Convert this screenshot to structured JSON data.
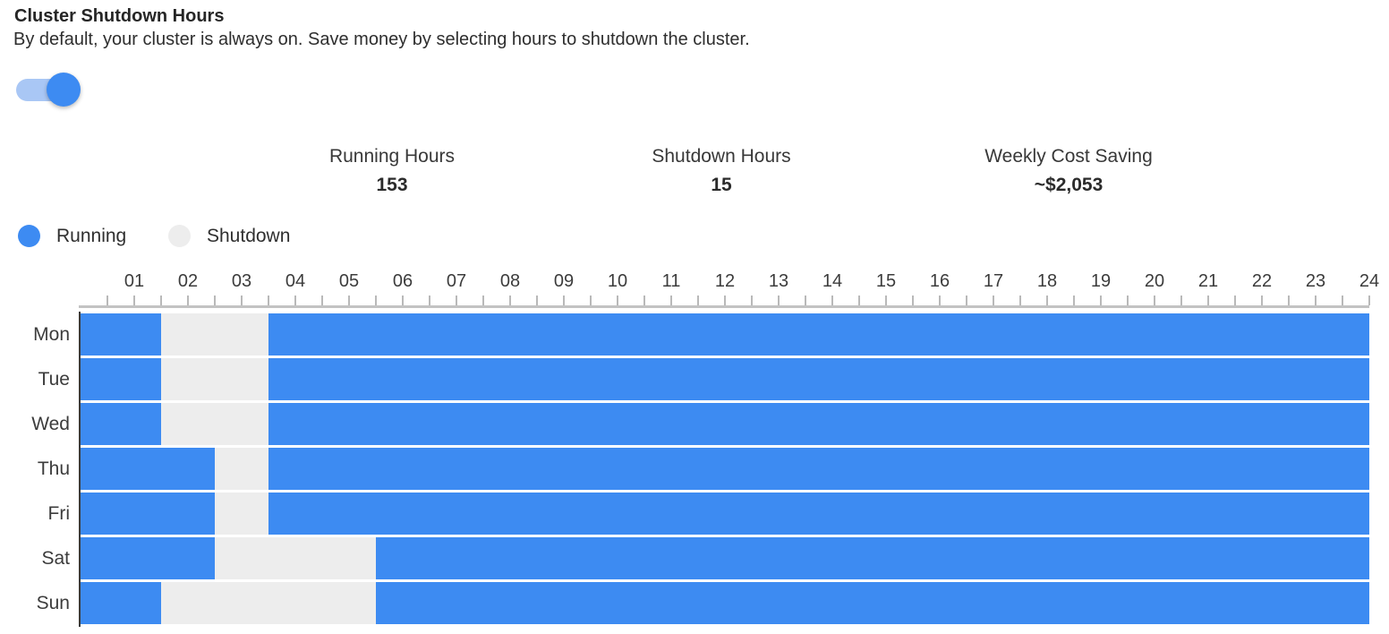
{
  "header": {
    "title": "Cluster Shutdown Hours",
    "subtitle": "By default, your cluster is always on. Save money by selecting hours to shutdown the cluster.",
    "toggle": {
      "state": "on"
    }
  },
  "stats": {
    "items": [
      {
        "label": "Running Hours",
        "value": "153"
      },
      {
        "label": "Shutdown Hours",
        "value": "15"
      },
      {
        "label": "Weekly Cost Saving",
        "value": "~$2,053"
      }
    ]
  },
  "legend": {
    "items": [
      {
        "label": "Running",
        "color": "#3d8bf2"
      },
      {
        "label": "Shutdown",
        "color": "#ededed"
      }
    ]
  },
  "colors": {
    "running": "#3d8bf2",
    "shutdown": "#ededed",
    "toggle_track": "#a9c7f5",
    "toggle_knob": "#3d8bf2",
    "axis_line": "#c3c3c3",
    "tick": "#b9b9b9",
    "day_axis_line": "#3a3a3a"
  },
  "chart_data": {
    "type": "heatmap",
    "title": "Weekly cluster running/shutdown schedule",
    "x": {
      "unit": "hour",
      "range": [
        0,
        24
      ],
      "tick_labels": [
        "01",
        "02",
        "03",
        "04",
        "05",
        "06",
        "07",
        "08",
        "09",
        "10",
        "11",
        "12",
        "13",
        "14",
        "15",
        "16",
        "17",
        "18",
        "19",
        "20",
        "21",
        "22",
        "23",
        "24"
      ],
      "minor_tick_interval": 0.5
    },
    "days": [
      "Mon",
      "Tue",
      "Wed",
      "Thu",
      "Fri",
      "Sat",
      "Sun"
    ],
    "states": {
      "default": "running",
      "selected": "shutdown"
    },
    "shutdown_intervals": [
      {
        "day": "Mon",
        "from": 1.5,
        "to": 3.5
      },
      {
        "day": "Tue",
        "from": 1.5,
        "to": 3.5
      },
      {
        "day": "Wed",
        "from": 1.5,
        "to": 3.5
      },
      {
        "day": "Thu",
        "from": 2.5,
        "to": 3.5
      },
      {
        "day": "Fri",
        "from": 2.5,
        "to": 3.5
      },
      {
        "day": "Sat",
        "from": 2.5,
        "to": 5.5
      },
      {
        "day": "Sun",
        "from": 1.5,
        "to": 5.5
      }
    ],
    "totals": {
      "running_hours": 153,
      "shutdown_hours": 15,
      "weekly_cost_saving": "~$2,053"
    },
    "legend_position": "top-left"
  }
}
